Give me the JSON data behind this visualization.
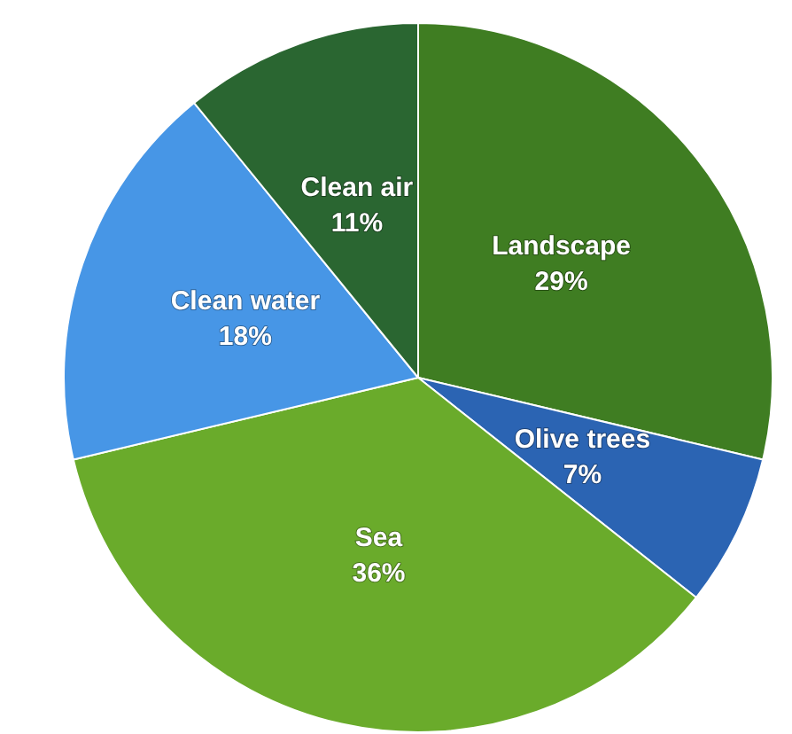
{
  "chart_data": {
    "type": "pie",
    "categories": [
      "Landscape",
      "Olive trees",
      "Sea",
      "Clean water",
      "Clean air"
    ],
    "values": [
      29,
      7,
      36,
      18,
      11
    ],
    "value_labels": [
      "29%",
      "7%",
      "36%",
      "18%",
      "11%"
    ],
    "colors": [
      "#3f7d22",
      "#2b64b3",
      "#6aab2b",
      "#4796e6",
      "#2a6631"
    ]
  }
}
